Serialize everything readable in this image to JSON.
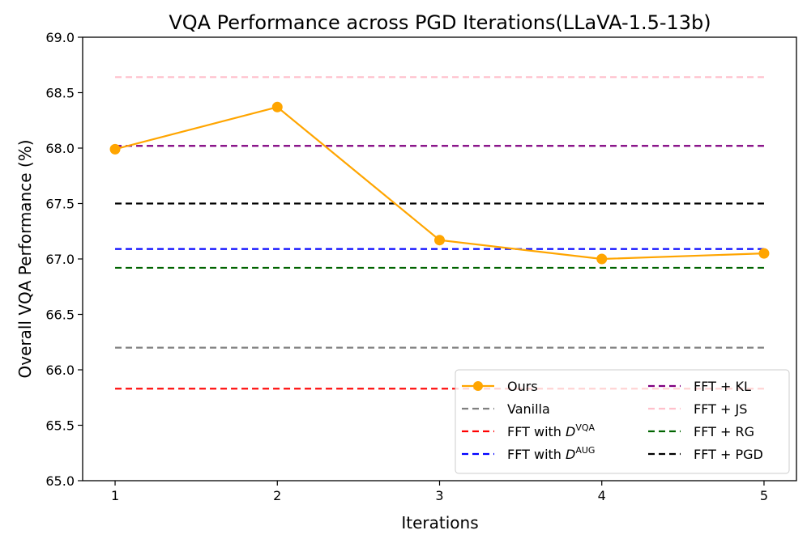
{
  "chart_data": {
    "type": "line",
    "title": "VQA Performance across PGD Iterations(LLaVA-1.5-13b)",
    "xlabel": "Iterations",
    "ylabel": "Overall VQA Performance (%)",
    "x": [
      1,
      2,
      3,
      4,
      5
    ],
    "xlim": [
      0.8,
      5.2
    ],
    "ylim": [
      65.0,
      69.0
    ],
    "xticks": [
      "1",
      "2",
      "3",
      "4",
      "5"
    ],
    "yticks": [
      "65.0",
      "65.5",
      "66.0",
      "66.5",
      "67.0",
      "67.5",
      "68.0",
      "68.5",
      "69.0"
    ],
    "grid": false,
    "legend_position": "bottom-right",
    "series": [
      {
        "name": "Ours",
        "values": [
          67.99,
          68.37,
          67.17,
          67.0,
          67.05
        ],
        "color": "#ffa500",
        "style": "solid-marker"
      },
      {
        "name": "Vanilla",
        "value": 66.2,
        "color": "#808080",
        "style": "dashed"
      },
      {
        "name": "FFT with D",
        "sup": "VQA",
        "value": 65.83,
        "color": "#ff0000",
        "style": "dashed"
      },
      {
        "name": "FFT with D",
        "sup": "AUG",
        "value": 67.09,
        "color": "#0000ff",
        "style": "dashed"
      },
      {
        "name": "FFT + KL",
        "value": 68.02,
        "color": "#800080",
        "style": "dashed"
      },
      {
        "name": "FFT + JS",
        "value": 68.64,
        "color": "#ffc0cb",
        "style": "dashed"
      },
      {
        "name": "FFT + RG",
        "value": 66.92,
        "color": "#006400",
        "style": "dashed"
      },
      {
        "name": "FFT + PGD",
        "value": 67.5,
        "color": "#000000",
        "style": "dashed"
      }
    ]
  }
}
